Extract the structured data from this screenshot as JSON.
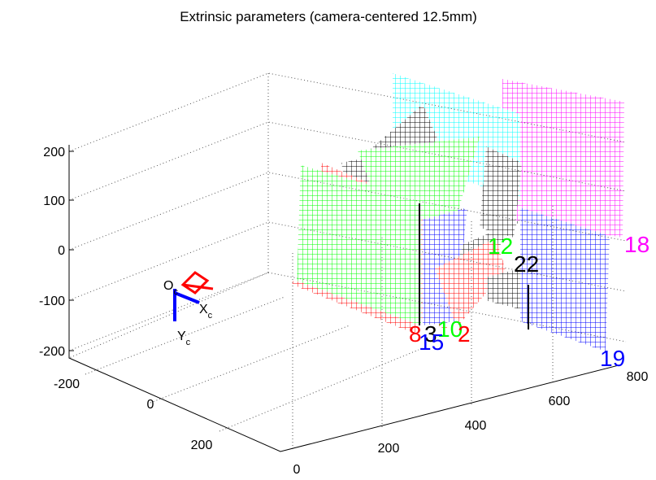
{
  "title": "Extrinsic parameters (camera-centered 12.5mm)",
  "axes": {
    "z_ticks": [
      200,
      100,
      0,
      -100,
      -200
    ],
    "x_ticks": [
      -200,
      0,
      200
    ],
    "y_ticks": [
      0,
      200,
      400,
      600,
      800
    ]
  },
  "camera": [
    {
      "text": "O",
      "sub": "c"
    },
    {
      "text": "X",
      "sub": "c"
    },
    {
      "text": "Y",
      "sub": "c"
    }
  ],
  "boards": [
    {
      "label": "18",
      "color": "#ff00ff"
    },
    {
      "label": "12",
      "color": "#00ff00"
    },
    {
      "label": "22",
      "color": "#000000"
    },
    {
      "label": "19",
      "color": "#0000ff"
    },
    {
      "label": "8",
      "color": "#ff0000"
    },
    {
      "label": "3",
      "color": "#000000"
    },
    {
      "label": "10",
      "color": "#00ff00"
    },
    {
      "label": "2",
      "color": "#ff0000"
    },
    {
      "label": "15",
      "color": "#0000ff"
    }
  ]
}
